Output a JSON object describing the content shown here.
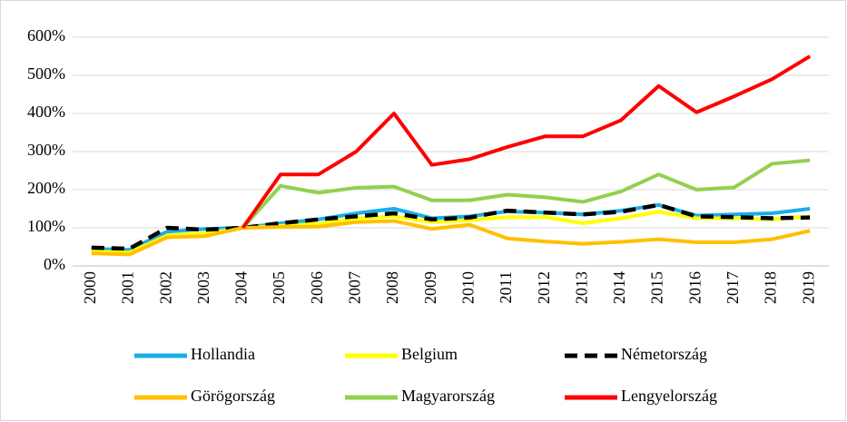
{
  "chart_data": {
    "type": "line",
    "categories": [
      "2000",
      "2001",
      "2002",
      "2003",
      "2004",
      "2005",
      "2006",
      "2007",
      "2008",
      "2009",
      "2010",
      "2011",
      "2012",
      "2013",
      "2014",
      "2015",
      "2016",
      "2017",
      "2018",
      "2019"
    ],
    "series": [
      {
        "name": "Hollandia",
        "color": "#1aaee8",
        "values": [
          45,
          42,
          90,
          97,
          100,
          112,
          122,
          138,
          150,
          125,
          130,
          143,
          140,
          135,
          145,
          160,
          132,
          135,
          138,
          150
        ]
      },
      {
        "name": "Belgium",
        "color": "#ffff00",
        "values": [
          38,
          35,
          80,
          85,
          100,
          105,
          110,
          125,
          130,
          115,
          120,
          128,
          128,
          112,
          125,
          142,
          125,
          125,
          122,
          130
        ]
      },
      {
        "name": "Németország",
        "color": "#000000",
        "dashed": true,
        "values": [
          48,
          45,
          100,
          95,
          100,
          112,
          122,
          130,
          138,
          122,
          127,
          145,
          140,
          135,
          142,
          160,
          130,
          128,
          125,
          127
        ]
      },
      {
        "name": "Görögország",
        "color": "#ffc000",
        "values": [
          33,
          30,
          75,
          78,
          100,
          102,
          103,
          115,
          118,
          97,
          108,
          72,
          64,
          58,
          63,
          70,
          62,
          62,
          70,
          92
        ]
      },
      {
        "name": "Magyarország",
        "color": "#92d050",
        "values": [
          null,
          null,
          null,
          null,
          100,
          210,
          192,
          205,
          208,
          172,
          172,
          187,
          180,
          168,
          195,
          240,
          200,
          206,
          268,
          277
        ]
      },
      {
        "name": "Lengyelország",
        "color": "#ff0000",
        "values": [
          null,
          null,
          null,
          null,
          100,
          240,
          240,
          300,
          400,
          265,
          280,
          312,
          340,
          340,
          382,
          472,
          403,
          445,
          490,
          550
        ]
      }
    ],
    "ylim": [
      0,
      600
    ],
    "yticks": [
      {
        "value": 0,
        "label": "0%"
      },
      {
        "value": 100,
        "label": "100%"
      },
      {
        "value": 200,
        "label": "200%"
      },
      {
        "value": 300,
        "label": "300%"
      },
      {
        "value": 400,
        "label": "400%"
      },
      {
        "value": 500,
        "label": "500%"
      },
      {
        "value": 600,
        "label": "600%"
      }
    ],
    "grid": true,
    "legend": "bottom"
  }
}
